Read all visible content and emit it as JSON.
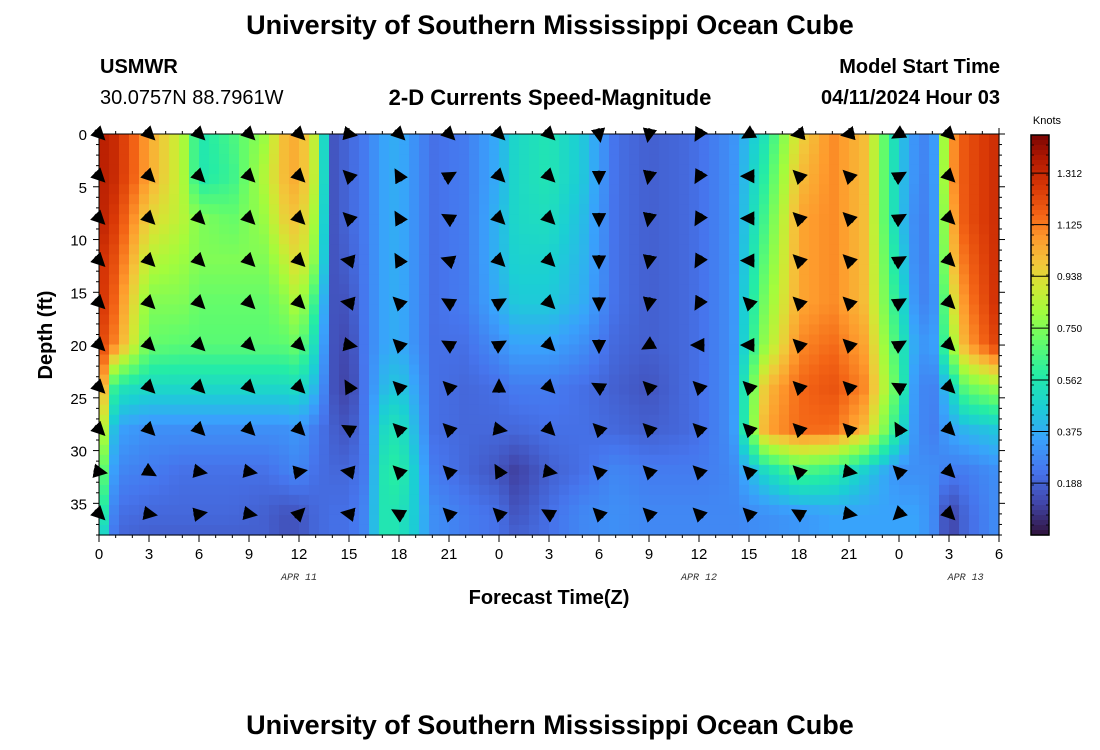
{
  "page": {
    "title": "University of Southern Mississippi Ocean Cube",
    "station": "USMWR",
    "coords": "30.0757N  88.7961W",
    "subtitle": "2-D Currents Speed-Magnitude",
    "model_start_label": "Model Start Time",
    "model_start_value": "04/11/2024 Hour 03",
    "footer_title": "University of Southern Mississippi Ocean Cube"
  },
  "chart_data": {
    "type": "heatmap",
    "title": "2-D Currents Speed-Magnitude",
    "xlabel": "Forecast Time(Z)",
    "ylabel": "Depth (ft)",
    "x_range_hours": [
      0,
      54
    ],
    "y_range_ft": [
      0,
      38
    ],
    "x_ticks": [
      "0",
      "3",
      "6",
      "9",
      "12",
      "15",
      "18",
      "21",
      "0",
      "3",
      "6",
      "9",
      "12",
      "15",
      "18",
      "21",
      "0",
      "3",
      "6"
    ],
    "y_ticks": [
      0,
      5,
      10,
      15,
      20,
      25,
      30,
      35
    ],
    "date_labels": [
      {
        "label": "APR 11",
        "hour": 12
      },
      {
        "label": "APR 12",
        "hour": 36
      },
      {
        "label": "APR 13",
        "hour": 52
      }
    ],
    "colorbar": {
      "unit": "Knots",
      "min": 0,
      "max": 1.45,
      "ticks": [
        1.312,
        1.125,
        0.938,
        0.75,
        0.562,
        0.375,
        0.188
      ],
      "tick_labels": [
        "1.312",
        "1.125",
        "0.938",
        "0.750",
        "0.562",
        "0.375",
        "0.188"
      ]
    },
    "speed_field": {
      "description": "approximate current speed (knots) at control points, bilinearly interpolated",
      "hours": [
        0,
        1,
        3,
        5,
        6,
        8,
        10,
        11,
        12,
        13,
        14,
        15,
        16,
        17,
        18,
        19,
        20,
        22,
        24,
        25,
        27,
        29,
        31,
        33,
        35,
        36,
        38,
        40,
        42,
        44,
        46,
        48,
        49,
        50,
        51,
        52,
        54
      ],
      "depths": [
        0,
        4,
        8,
        12,
        16,
        20,
        24,
        28,
        32,
        36,
        38
      ],
      "values": [
        [
          1.35,
          1.3,
          1.05,
          0.85,
          0.55,
          0.65,
          0.8,
          1.0,
          1.05,
          0.85,
          0.15,
          0.2,
          0.25,
          0.35,
          0.38,
          0.3,
          0.22,
          0.25,
          0.38,
          0.5,
          0.55,
          0.45,
          0.22,
          0.18,
          0.2,
          0.22,
          0.3,
          0.55,
          0.95,
          1.1,
          1.0,
          0.45,
          0.3,
          0.25,
          1.05,
          1.2,
          1.3
        ],
        [
          1.35,
          1.3,
          1.05,
          0.85,
          0.55,
          0.62,
          0.85,
          1.0,
          1.05,
          0.85,
          0.15,
          0.2,
          0.25,
          0.35,
          0.38,
          0.3,
          0.22,
          0.25,
          0.38,
          0.5,
          0.55,
          0.45,
          0.22,
          0.18,
          0.2,
          0.22,
          0.3,
          0.6,
          1.0,
          1.1,
          1.0,
          0.45,
          0.3,
          0.25,
          1.05,
          1.2,
          1.3
        ],
        [
          1.35,
          1.25,
          0.95,
          0.85,
          0.75,
          0.7,
          0.8,
          0.95,
          1.0,
          0.8,
          0.15,
          0.2,
          0.25,
          0.35,
          0.38,
          0.3,
          0.22,
          0.25,
          0.4,
          0.5,
          0.52,
          0.42,
          0.22,
          0.18,
          0.2,
          0.22,
          0.3,
          0.65,
          1.05,
          1.1,
          1.0,
          0.45,
          0.28,
          0.25,
          1.0,
          1.2,
          1.3
        ],
        [
          1.3,
          1.2,
          0.85,
          0.8,
          0.75,
          0.75,
          0.75,
          0.85,
          0.95,
          0.75,
          0.15,
          0.18,
          0.25,
          0.35,
          0.38,
          0.3,
          0.22,
          0.25,
          0.4,
          0.48,
          0.48,
          0.4,
          0.22,
          0.18,
          0.2,
          0.22,
          0.3,
          0.7,
          1.05,
          1.1,
          1.0,
          0.5,
          0.28,
          0.25,
          0.95,
          1.15,
          1.3
        ],
        [
          1.3,
          1.15,
          0.75,
          0.75,
          0.7,
          0.7,
          0.7,
          0.75,
          0.85,
          0.6,
          0.15,
          0.15,
          0.25,
          0.35,
          0.38,
          0.3,
          0.22,
          0.25,
          0.38,
          0.45,
          0.45,
          0.38,
          0.22,
          0.18,
          0.2,
          0.22,
          0.3,
          0.75,
          1.05,
          1.1,
          1.0,
          0.55,
          0.3,
          0.25,
          0.85,
          1.1,
          1.3
        ],
        [
          1.25,
          1.1,
          0.7,
          0.68,
          0.68,
          0.68,
          0.68,
          0.68,
          0.72,
          0.5,
          0.15,
          0.12,
          0.25,
          0.35,
          0.38,
          0.3,
          0.22,
          0.22,
          0.3,
          0.35,
          0.35,
          0.3,
          0.2,
          0.18,
          0.2,
          0.22,
          0.3,
          0.8,
          1.1,
          1.15,
          1.05,
          0.6,
          0.35,
          0.3,
          0.75,
          1.05,
          1.25
        ],
        [
          1.2,
          0.55,
          0.5,
          0.5,
          0.5,
          0.5,
          0.5,
          0.5,
          0.52,
          0.4,
          0.15,
          0.1,
          0.25,
          0.4,
          0.45,
          0.35,
          0.22,
          0.2,
          0.22,
          0.25,
          0.25,
          0.22,
          0.18,
          0.15,
          0.2,
          0.22,
          0.3,
          1.0,
          1.15,
          1.2,
          1.1,
          0.65,
          0.3,
          0.25,
          0.45,
          0.7,
          0.8
        ],
        [
          1.05,
          0.35,
          0.3,
          0.3,
          0.3,
          0.3,
          0.3,
          0.3,
          0.32,
          0.25,
          0.18,
          0.15,
          0.25,
          0.5,
          0.55,
          0.4,
          0.22,
          0.2,
          0.2,
          0.2,
          0.22,
          0.22,
          0.2,
          0.18,
          0.2,
          0.22,
          0.3,
          1.05,
          1.15,
          1.15,
          1.0,
          0.55,
          0.3,
          0.25,
          0.35,
          0.4,
          0.45
        ],
        [
          0.85,
          0.28,
          0.25,
          0.22,
          0.22,
          0.22,
          0.22,
          0.25,
          0.28,
          0.22,
          0.2,
          0.2,
          0.25,
          0.55,
          0.6,
          0.45,
          0.25,
          0.2,
          0.15,
          0.1,
          0.18,
          0.22,
          0.28,
          0.25,
          0.25,
          0.25,
          0.28,
          0.5,
          0.65,
          0.6,
          0.45,
          0.3,
          0.3,
          0.3,
          0.25,
          0.25,
          0.3
        ],
        [
          0.7,
          0.22,
          0.2,
          0.2,
          0.2,
          0.2,
          0.18,
          0.15,
          0.15,
          0.2,
          0.22,
          0.22,
          0.28,
          0.55,
          0.55,
          0.45,
          0.3,
          0.25,
          0.22,
          0.15,
          0.22,
          0.28,
          0.3,
          0.28,
          0.28,
          0.28,
          0.28,
          0.3,
          0.32,
          0.35,
          0.35,
          0.35,
          0.35,
          0.3,
          0.1,
          0.2,
          0.3
        ],
        [
          0.6,
          0.2,
          0.18,
          0.18,
          0.18,
          0.18,
          0.18,
          0.15,
          0.15,
          0.2,
          0.22,
          0.22,
          0.28,
          0.55,
          0.55,
          0.45,
          0.3,
          0.25,
          0.22,
          0.18,
          0.22,
          0.28,
          0.3,
          0.28,
          0.28,
          0.28,
          0.28,
          0.3,
          0.32,
          0.35,
          0.35,
          0.35,
          0.35,
          0.3,
          0.1,
          0.2,
          0.3
        ]
      ]
    },
    "vector_field": {
      "description": "direction of current arrows (degrees, 0 = east, 90 = up)",
      "hours": [
        0,
        3,
        6,
        9,
        12,
        15,
        18,
        21,
        24,
        27,
        30,
        33,
        36,
        39,
        42,
        45,
        48,
        51
      ],
      "depths": [
        0,
        4,
        8,
        12,
        16,
        20,
        24,
        28,
        32,
        36
      ],
      "directions_deg": [
        [
          -45,
          -45,
          -45,
          -45,
          -45,
          -10,
          -45,
          -45,
          -45,
          -45,
          -80,
          -100,
          -120,
          -150,
          -170,
          -170,
          -150,
          -45
        ],
        [
          -45,
          -45,
          -45,
          -45,
          -45,
          135,
          120,
          30,
          -45,
          -45,
          -90,
          -100,
          -120,
          180,
          135,
          135,
          30,
          -45
        ],
        [
          -45,
          -45,
          -45,
          -45,
          -45,
          135,
          120,
          150,
          -45,
          -45,
          -90,
          -100,
          -120,
          180,
          135,
          135,
          30,
          -45
        ],
        [
          -45,
          -45,
          -45,
          -45,
          -45,
          170,
          120,
          160,
          -45,
          -45,
          -90,
          -100,
          -120,
          180,
          135,
          135,
          30,
          -45
        ],
        [
          -45,
          -45,
          -45,
          -45,
          -45,
          170,
          135,
          150,
          30,
          -45,
          -90,
          -100,
          -120,
          135,
          135,
          135,
          30,
          -45
        ],
        [
          -45,
          -45,
          -45,
          -45,
          -45,
          -10,
          135,
          150,
          30,
          -45,
          -90,
          -150,
          180,
          180,
          135,
          135,
          30,
          -45
        ],
        [
          -45,
          -45,
          -45,
          -45,
          -45,
          120,
          135,
          135,
          90,
          -45,
          150,
          135,
          135,
          135,
          135,
          135,
          150,
          -45
        ],
        [
          -45,
          -45,
          -45,
          -45,
          -45,
          150,
          135,
          135,
          -10,
          -45,
          135,
          135,
          135,
          135,
          135,
          135,
          120,
          -45
        ],
        [
          -10,
          -30,
          -10,
          -10,
          10,
          170,
          135,
          135,
          120,
          -10,
          135,
          135,
          135,
          135,
          135,
          -10,
          135,
          -45
        ],
        [
          -45,
          -10,
          10,
          -10,
          45,
          170,
          150,
          135,
          135,
          150,
          135,
          135,
          135,
          135,
          150,
          -10,
          -135,
          -45
        ]
      ]
    }
  }
}
